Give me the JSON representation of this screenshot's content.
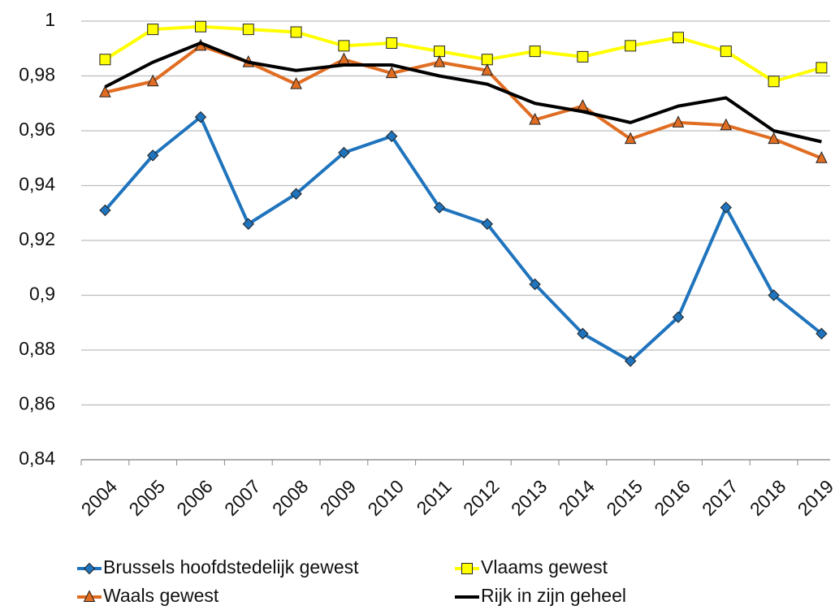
{
  "chart_data": {
    "type": "line",
    "categories": [
      "2004",
      "2005",
      "2006",
      "2007",
      "2008",
      "2009",
      "2010",
      "2011",
      "2012",
      "2013",
      "2014",
      "2015",
      "2016",
      "2017",
      "2018",
      "2019"
    ],
    "ylim": [
      0.84,
      1
    ],
    "yticks": [
      {
        "value": 0.84,
        "label": "0,84"
      },
      {
        "value": 0.86,
        "label": "0,86"
      },
      {
        "value": 0.88,
        "label": "0,88"
      },
      {
        "value": 0.9,
        "label": "0,9"
      },
      {
        "value": 0.92,
        "label": "0,92"
      },
      {
        "value": 0.94,
        "label": "0,94"
      },
      {
        "value": 0.96,
        "label": "0,96"
      },
      {
        "value": 0.98,
        "label": "0,98"
      },
      1
    ],
    "grid": true,
    "series": [
      {
        "name": "Brussels hoofdstedelijk gewest",
        "color": "#1f74bd",
        "marker": "diamond",
        "values": [
          0.931,
          0.951,
          0.965,
          0.926,
          0.937,
          0.952,
          0.958,
          0.932,
          0.926,
          0.904,
          0.886,
          0.876,
          0.892,
          0.932,
          0.9,
          0.886
        ]
      },
      {
        "name": "Vlaams gewest",
        "color": "#ffff00",
        "marker": "square",
        "values": [
          0.986,
          0.997,
          0.998,
          0.997,
          0.996,
          0.991,
          0.992,
          0.989,
          0.986,
          0.989,
          0.987,
          0.991,
          0.994,
          0.989,
          0.978,
          0.983
        ]
      },
      {
        "name": "Waals gewest",
        "color": "#e06d22",
        "marker": "triangle",
        "values": [
          0.974,
          0.978,
          0.991,
          0.985,
          0.977,
          0.986,
          0.981,
          0.985,
          0.982,
          0.964,
          0.969,
          0.957,
          0.963,
          0.962,
          0.957,
          0.95
        ]
      },
      {
        "name": "Rijk in zijn geheel",
        "color": "#000000",
        "marker": "none",
        "values": [
          0.976,
          0.985,
          0.992,
          0.985,
          0.982,
          0.984,
          0.984,
          0.98,
          0.977,
          0.97,
          0.967,
          0.963,
          0.969,
          0.972,
          0.96,
          0.956
        ]
      }
    ]
  }
}
